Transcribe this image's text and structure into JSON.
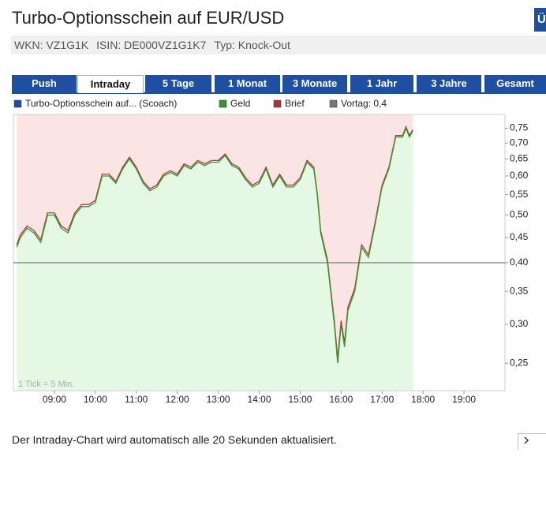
{
  "header": {
    "title": "Turbo-Optionsschein auf EUR/USD",
    "button": "Ü",
    "fields": [
      "WKN: VZ1G1K",
      "ISIN: DE000VZ1G1K7",
      "Typ: Knock-Out"
    ]
  },
  "tabs": {
    "items": [
      "Push",
      "Intraday",
      "5 Tage",
      "1 Monat",
      "3 Monate",
      "1 Jahr",
      "3 Jahre",
      "Gesamt"
    ],
    "selected": 1
  },
  "chart_data": {
    "type": "line",
    "instrument": {
      "name": "Turbo-Optionsschein auf... (Scoach)",
      "color": "#1f4fa5"
    },
    "x": [
      "08:05",
      "08:10",
      "08:20",
      "08:30",
      "08:40",
      "08:50",
      "09:00",
      "09:10",
      "09:20",
      "09:30",
      "09:40",
      "09:50",
      "10:00",
      "10:10",
      "10:20",
      "10:30",
      "10:40",
      "10:50",
      "11:00",
      "11:10",
      "11:20",
      "11:30",
      "11:40",
      "11:50",
      "12:00",
      "12:10",
      "12:20",
      "12:30",
      "12:40",
      "12:50",
      "13:00",
      "13:10",
      "13:20",
      "13:30",
      "13:40",
      "13:50",
      "14:00",
      "14:10",
      "14:20",
      "14:30",
      "14:40",
      "14:50",
      "15:00",
      "15:10",
      "15:20",
      "15:25",
      "15:30",
      "15:40",
      "15:50",
      "15:55",
      "16:00",
      "16:05",
      "16:10",
      "16:20",
      "16:30",
      "16:40",
      "16:50",
      "17:00",
      "17:10",
      "17:20",
      "17:30",
      "17:35",
      "17:40",
      "17:45"
    ],
    "series": [
      {
        "name": "Geld",
        "color": "#2e9a2e",
        "values": [
          0.43,
          0.45,
          0.47,
          0.46,
          0.44,
          0.5,
          0.5,
          0.47,
          0.46,
          0.5,
          0.52,
          0.52,
          0.53,
          0.6,
          0.6,
          0.58,
          0.62,
          0.65,
          0.62,
          0.58,
          0.56,
          0.57,
          0.6,
          0.61,
          0.6,
          0.63,
          0.62,
          0.64,
          0.63,
          0.64,
          0.64,
          0.66,
          0.63,
          0.62,
          0.59,
          0.57,
          0.58,
          0.62,
          0.57,
          0.6,
          0.57,
          0.57,
          0.59,
          0.64,
          0.62,
          0.55,
          0.46,
          0.4,
          0.3,
          0.25,
          0.3,
          0.27,
          0.32,
          0.35,
          0.43,
          0.41,
          0.48,
          0.57,
          0.62,
          0.72,
          0.72,
          0.75,
          0.72,
          0.74
        ]
      },
      {
        "name": "Brief",
        "color": "#b03434",
        "values": [
          0.435,
          0.455,
          0.475,
          0.465,
          0.445,
          0.505,
          0.505,
          0.475,
          0.465,
          0.505,
          0.525,
          0.525,
          0.535,
          0.605,
          0.605,
          0.585,
          0.625,
          0.655,
          0.625,
          0.585,
          0.565,
          0.575,
          0.605,
          0.615,
          0.605,
          0.635,
          0.625,
          0.645,
          0.635,
          0.645,
          0.645,
          0.665,
          0.635,
          0.625,
          0.595,
          0.575,
          0.585,
          0.625,
          0.575,
          0.605,
          0.575,
          0.575,
          0.595,
          0.645,
          0.625,
          0.555,
          0.465,
          0.405,
          0.305,
          0.255,
          0.305,
          0.275,
          0.325,
          0.355,
          0.435,
          0.415,
          0.485,
          0.575,
          0.625,
          0.725,
          0.725,
          0.755,
          0.725,
          0.745
        ]
      }
    ],
    "reference": {
      "name": "Vortag: 0,4",
      "value": 0.4,
      "color": "#777777"
    },
    "fill_colors": {
      "below": "#e4f8e4",
      "above": "#fbe4e4"
    },
    "log_y": true,
    "ylim": [
      0.22,
      0.8
    ],
    "yticks": [
      {
        "value": 0.25,
        "label": "0,25"
      },
      {
        "value": 0.3,
        "label": "0,30"
      },
      {
        "value": 0.35,
        "label": "0,35"
      },
      {
        "value": 0.4,
        "label": "0,40"
      },
      {
        "value": 0.45,
        "label": "0,45"
      },
      {
        "value": 0.5,
        "label": "0,50"
      },
      {
        "value": 0.55,
        "label": "0,55"
      },
      {
        "value": 0.6,
        "label": "0,60"
      },
      {
        "value": 0.65,
        "label": "0,65"
      },
      {
        "value": 0.7,
        "label": "0,70"
      },
      {
        "value": 0.75,
        "label": "0,75"
      }
    ],
    "xlim": [
      "08:00",
      "20:00"
    ],
    "xticks": [
      "09:00",
      "10:00",
      "11:00",
      "12:00",
      "13:00",
      "14:00",
      "15:00",
      "16:00",
      "17:00",
      "18:00",
      "19:00"
    ],
    "annotation": "1 Tick = 5 Min."
  },
  "footer": "Der Intraday-Chart wird automatisch alle 20 Sekunden aktualisiert."
}
